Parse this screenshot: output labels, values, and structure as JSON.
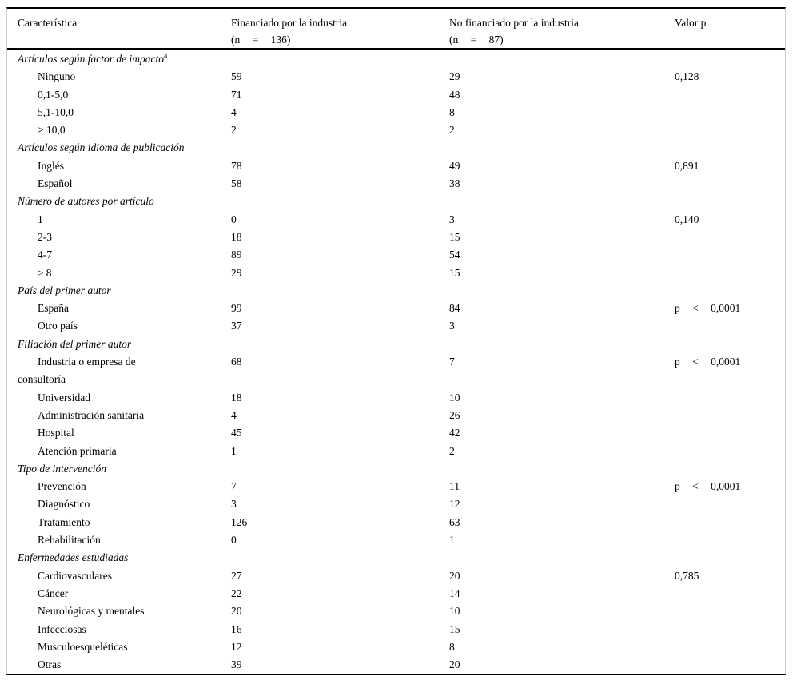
{
  "table": {
    "columns": [
      {
        "title": "Característica",
        "sub": ""
      },
      {
        "title": "Financiado por la industria",
        "sub": "(n = 136)"
      },
      {
        "title": "No financiado por la industria",
        "sub": "(n = 87)"
      },
      {
        "title": "Valor p",
        "sub": ""
      }
    ],
    "rows": [
      {
        "type": "section",
        "label": "Artículos según factor de impacto",
        "sup": "a",
        "funded": "",
        "not_funded": "",
        "p": "",
        "p_spaced": false
      },
      {
        "type": "item",
        "label": "Ninguno",
        "funded": "59",
        "not_funded": "29",
        "p": "0,128",
        "p_spaced": false
      },
      {
        "type": "item",
        "label": "0,1-5,0",
        "funded": "71",
        "not_funded": "48",
        "p": "",
        "p_spaced": false
      },
      {
        "type": "item",
        "label": "5,1-10,0",
        "funded": "4",
        "not_funded": "8",
        "p": "",
        "p_spaced": false
      },
      {
        "type": "item",
        "label": "> 10,0",
        "funded": "2",
        "not_funded": "2",
        "p": "",
        "p_spaced": false
      },
      {
        "type": "section",
        "label": "Artículos según idioma de publicación",
        "funded": "",
        "not_funded": "",
        "p": "",
        "p_spaced": false
      },
      {
        "type": "item",
        "label": "Inglés",
        "funded": "78",
        "not_funded": "49",
        "p": "0,891",
        "p_spaced": false
      },
      {
        "type": "item",
        "label": "Español",
        "funded": "58",
        "not_funded": "38",
        "p": "",
        "p_spaced": false
      },
      {
        "type": "section",
        "label": "Número de autores por artículo",
        "funded": "",
        "not_funded": "",
        "p": "",
        "p_spaced": false
      },
      {
        "type": "item",
        "label": "1",
        "funded": "0",
        "not_funded": "3",
        "p": "0,140",
        "p_spaced": false
      },
      {
        "type": "item",
        "label": "2-3",
        "funded": "18",
        "not_funded": "15",
        "p": "",
        "p_spaced": false
      },
      {
        "type": "item",
        "label": "4-7",
        "funded": "89",
        "not_funded": "54",
        "p": "",
        "p_spaced": false
      },
      {
        "type": "item",
        "label": "≥ 8",
        "funded": "29",
        "not_funded": "15",
        "p": "",
        "p_spaced": false
      },
      {
        "type": "section",
        "label": "País del primer autor",
        "funded": "",
        "not_funded": "",
        "p": "",
        "p_spaced": false
      },
      {
        "type": "item",
        "label": "España",
        "funded": "99",
        "not_funded": "84",
        "p": "p < 0,0001",
        "p_spaced": true
      },
      {
        "type": "item",
        "label": "Otro país",
        "funded": "37",
        "not_funded": "3",
        "p": "",
        "p_spaced": false
      },
      {
        "type": "section",
        "label": "Filiación del primer autor",
        "funded": "",
        "not_funded": "",
        "p": "",
        "p_spaced": false
      },
      {
        "type": "item",
        "label": "Industria o empresa de\nconsultoría",
        "funded": "68",
        "not_funded": "7",
        "p": "p < 0,0001",
        "p_spaced": true
      },
      {
        "type": "item",
        "label": "Universidad",
        "funded": "18",
        "not_funded": "10",
        "p": "",
        "p_spaced": false
      },
      {
        "type": "item",
        "label": "Administración sanitaria",
        "funded": "4",
        "not_funded": "26",
        "p": "",
        "p_spaced": false
      },
      {
        "type": "item",
        "label": "Hospital",
        "funded": "45",
        "not_funded": "42",
        "p": "",
        "p_spaced": false
      },
      {
        "type": "item",
        "label": "Atención primaria",
        "funded": "1",
        "not_funded": "2",
        "p": "",
        "p_spaced": false
      },
      {
        "type": "section",
        "label": "Tipo de intervención",
        "funded": "",
        "not_funded": "",
        "p": "",
        "p_spaced": false
      },
      {
        "type": "item",
        "label": "Prevención",
        "funded": "7",
        "not_funded": "11",
        "p": "p < 0,0001",
        "p_spaced": true
      },
      {
        "type": "item",
        "label": "Diagnóstico",
        "funded": "3",
        "not_funded": "12",
        "p": "",
        "p_spaced": false
      },
      {
        "type": "item",
        "label": "Tratamiento",
        "funded": "126",
        "not_funded": "63",
        "p": "",
        "p_spaced": false
      },
      {
        "type": "item",
        "label": "Rehabilitación",
        "funded": "0",
        "not_funded": "1",
        "p": "",
        "p_spaced": false
      },
      {
        "type": "section",
        "label": "Enfermedades estudiadas",
        "funded": "",
        "not_funded": "",
        "p": "",
        "p_spaced": false
      },
      {
        "type": "item",
        "label": "Cardiovasculares",
        "funded": "27",
        "not_funded": "20",
        "p": "0,785",
        "p_spaced": false
      },
      {
        "type": "item",
        "label": "Cáncer",
        "funded": "22",
        "not_funded": "14",
        "p": "",
        "p_spaced": false
      },
      {
        "type": "item",
        "label": "Neurológicas y mentales",
        "funded": "20",
        "not_funded": "10",
        "p": "",
        "p_spaced": false
      },
      {
        "type": "item",
        "label": "Infecciosas",
        "funded": "16",
        "not_funded": "15",
        "p": "",
        "p_spaced": false
      },
      {
        "type": "item",
        "label": "Musculoesqueléticas",
        "funded": "12",
        "not_funded": "8",
        "p": "",
        "p_spaced": false
      },
      {
        "type": "item",
        "label": "Otras",
        "funded": "39",
        "not_funded": "20",
        "p": "",
        "p_spaced": false
      }
    ]
  }
}
